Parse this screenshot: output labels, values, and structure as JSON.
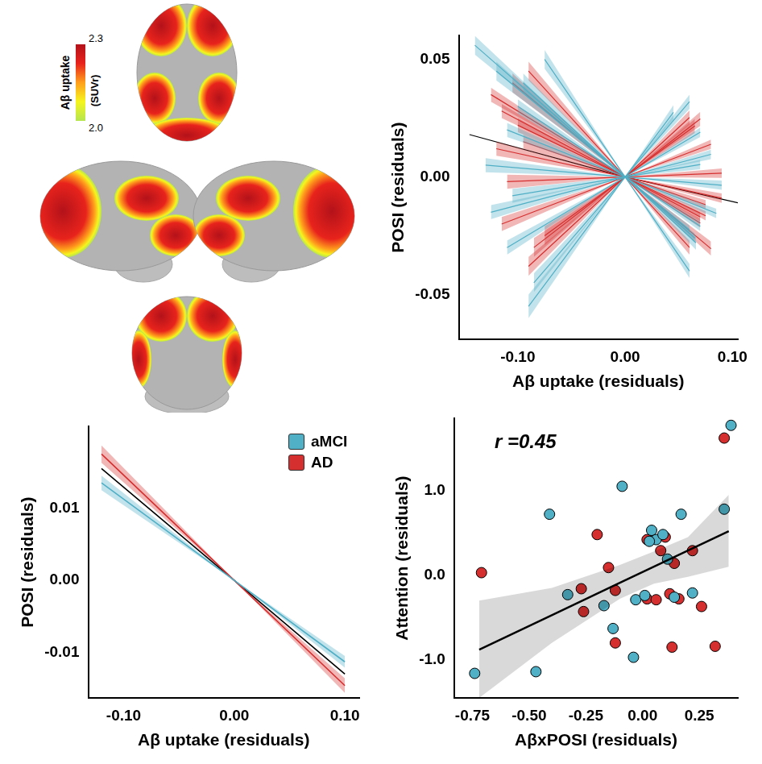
{
  "chart_data": [
    {
      "type": "line",
      "x_label": "Aβ uptake (residuals)",
      "y_label": "POSI (residuals)",
      "xlim": [
        -0.155,
        0.105
      ],
      "ylim": [
        -0.069,
        0.06
      ],
      "xticks": [
        {
          "value": -0.1,
          "label": "-0.10"
        },
        {
          "value": 0,
          "label": "0.00"
        },
        {
          "value": 0.1,
          "label": "0.10"
        }
      ],
      "yticks": [
        {
          "value": -0.05,
          "label": "-0.05"
        },
        {
          "value": 0,
          "label": "0.00"
        },
        {
          "value": 0.05,
          "label": "0.05"
        }
      ],
      "grid": false,
      "series": [
        {
          "name": "aMCI",
          "color": "#4fb0c6",
          "x": [
            -0.14,
            0,
            0.065
          ],
          "values": [
            0.056,
            0,
            -0.026
          ],
          "ci": [
            0.004,
            0,
            0.002
          ]
        },
        {
          "name": "aMCI",
          "color": "#4fb0c6",
          "x": [
            -0.12,
            0,
            0.06
          ],
          "values": [
            0.045,
            0,
            -0.0225
          ],
          "ci": [
            0.004,
            0,
            0.002
          ]
        },
        {
          "name": "aMCI",
          "color": "#4fb0c6",
          "x": [
            -0.1,
            0,
            0.07
          ],
          "values": [
            0.03,
            0,
            -0.021
          ],
          "ci": [
            0.003,
            0,
            0.002
          ]
        },
        {
          "name": "aMCI",
          "color": "#4fb0c6",
          "x": [
            -0.13,
            0,
            0.09
          ],
          "values": [
            0.005,
            0,
            -0.0035
          ],
          "ci": [
            0.003,
            0,
            0.002
          ]
        },
        {
          "name": "aMCI",
          "color": "#4fb0c6",
          "x": [
            -0.125,
            0,
            0.08
          ],
          "values": [
            -0.015,
            0,
            0.0096
          ],
          "ci": [
            0.003,
            0,
            0.002
          ]
        },
        {
          "name": "aMCI",
          "color": "#4fb0c6",
          "x": [
            -0.09,
            0,
            0.045
          ],
          "values": [
            -0.055,
            0,
            0.0275
          ],
          "ci": [
            0.005,
            0,
            0.003
          ]
        },
        {
          "name": "aMCI",
          "color": "#4fb0c6",
          "x": [
            -0.085,
            0,
            0.06
          ],
          "values": [
            -0.045,
            0,
            0.032
          ],
          "ci": [
            0.004,
            0,
            0.003
          ]
        },
        {
          "name": "aMCI",
          "color": "#4fb0c6",
          "x": [
            -0.11,
            0,
            0.07
          ],
          "values": [
            -0.03,
            0,
            0.019
          ],
          "ci": [
            0.003,
            0,
            0.002
          ]
        },
        {
          "name": "aMCI",
          "color": "#4fb0c6",
          "x": [
            -0.095,
            0,
            0.066
          ],
          "values": [
            0.04,
            0,
            -0.028
          ],
          "ci": [
            0.004,
            0,
            0.003
          ]
        },
        {
          "name": "aMCI",
          "color": "#4fb0c6",
          "x": [
            -0.11,
            0,
            0.085
          ],
          "values": [
            0.02,
            0,
            -0.0155
          ],
          "ci": [
            0.003,
            0,
            0.002
          ]
        },
        {
          "name": "aMCI",
          "color": "#4fb0c6",
          "x": [
            -0.105,
            0,
            0.07
          ],
          "values": [
            -0.008,
            0,
            0.0053
          ],
          "ci": [
            0.003,
            0,
            0.002
          ]
        },
        {
          "name": "aMCI",
          "color": "#4fb0c6",
          "x": [
            -0.075,
            0,
            0.06
          ],
          "values": [
            0.05,
            0,
            -0.04
          ],
          "ci": [
            0.004,
            0,
            0.003
          ]
        },
        {
          "name": "AD",
          "color": "#d62f2f",
          "x": [
            -0.125,
            0,
            0.07
          ],
          "values": [
            0.035,
            0,
            -0.0196
          ],
          "ci": [
            0.003,
            0,
            0.002
          ]
        },
        {
          "name": "AD",
          "color": "#d62f2f",
          "x": [
            -0.115,
            0,
            0.07
          ],
          "values": [
            0.028,
            0,
            -0.017
          ],
          "ci": [
            0.003,
            0,
            0.002
          ]
        },
        {
          "name": "AD",
          "color": "#d62f2f",
          "x": [
            -0.09,
            0,
            0.06
          ],
          "values": [
            0.045,
            0,
            -0.03
          ],
          "ci": [
            0.004,
            0,
            0.003
          ]
        },
        {
          "name": "AD",
          "color": "#d62f2f",
          "x": [
            -0.1,
            0,
            0.075
          ],
          "values": [
            0.022,
            0,
            -0.0165
          ],
          "ci": [
            0.003,
            0,
            0.002
          ]
        },
        {
          "name": "AD",
          "color": "#d62f2f",
          "x": [
            -0.12,
            0,
            0.09
          ],
          "values": [
            0.012,
            0,
            -0.009
          ],
          "ci": [
            0.003,
            0,
            0.002
          ]
        },
        {
          "name": "AD",
          "color": "#d62f2f",
          "x": [
            -0.085,
            0,
            0.07
          ],
          "values": [
            -0.03,
            0,
            0.0247
          ],
          "ci": [
            0.004,
            0,
            0.003
          ]
        },
        {
          "name": "AD",
          "color": "#d62f2f",
          "x": [
            -0.09,
            0,
            0.06
          ],
          "values": [
            -0.038,
            0,
            0.0253
          ],
          "ci": [
            0.004,
            0,
            0.003
          ]
        },
        {
          "name": "AD",
          "color": "#d62f2f",
          "x": [
            -0.115,
            0,
            0.08
          ],
          "values": [
            -0.02,
            0,
            0.0139
          ],
          "ci": [
            0.003,
            0,
            0.002
          ]
        },
        {
          "name": "AD",
          "color": "#d62f2f",
          "x": [
            -0.075,
            0,
            0.065
          ],
          "values": [
            -0.025,
            0,
            0.0217
          ],
          "ci": [
            0.004,
            0,
            0.003
          ]
        },
        {
          "name": "AD",
          "color": "#d62f2f",
          "x": [
            -0.105,
            0,
            0.08
          ],
          "values": [
            0.04,
            0,
            -0.0305
          ],
          "ci": [
            0.004,
            0,
            0.003
          ]
        },
        {
          "name": "AD",
          "color": "#d62f2f",
          "x": [
            -0.095,
            0,
            0.075
          ],
          "values": [
            0.015,
            0,
            -0.0118
          ],
          "ci": [
            0.003,
            0,
            0.002
          ]
        },
        {
          "name": "AD",
          "color": "#d62f2f",
          "x": [
            -0.11,
            0,
            0.09
          ],
          "values": [
            -0.002,
            0,
            0.0016
          ],
          "ci": [
            0.003,
            0,
            0.002
          ]
        },
        {
          "color": "#000000",
          "x": [
            -0.145,
            0,
            0.105
          ],
          "values": [
            0.018,
            0,
            -0.011
          ]
        }
      ]
    },
    {
      "type": "line",
      "x_label": "Aβ uptake (residuals)",
      "y_label": "POSI (residuals)",
      "xlim": [
        -0.132,
        0.113
      ],
      "ylim": [
        -0.0163,
        0.0213
      ],
      "xticks": [
        {
          "value": -0.1,
          "label": "-0.10"
        },
        {
          "value": 0,
          "label": "0.00"
        },
        {
          "value": 0.1,
          "label": "0.10"
        }
      ],
      "yticks": [
        {
          "value": -0.01,
          "label": "-0.01"
        },
        {
          "value": 0,
          "label": "0.00"
        },
        {
          "value": 0.01,
          "label": "0.01"
        }
      ],
      "grid": false,
      "legend": "top-right",
      "series": [
        {
          "name": "aMCI",
          "color": "#4fb0c6",
          "x": [
            -0.12,
            0,
            0.1
          ],
          "values": [
            0.0135,
            0,
            -0.0113
          ],
          "ci": [
            0.001,
            0,
            0.0008
          ]
        },
        {
          "name": "AD",
          "color": "#d62f2f",
          "x": [
            -0.12,
            0,
            0.1
          ],
          "values": [
            0.0175,
            0,
            -0.0146
          ],
          "ci": [
            0.0012,
            0,
            0.001
          ]
        },
        {
          "color": "#000000",
          "x": [
            -0.12,
            0,
            0.1
          ],
          "values": [
            0.0155,
            0,
            -0.013
          ]
        }
      ]
    },
    {
      "type": "scatter",
      "x_label": "AβxPOSI (residuals)",
      "y_label": "Attention (residuals)",
      "xlim": [
        -0.83,
        0.42
      ],
      "ylim": [
        -1.45,
        1.85
      ],
      "xticks": [
        {
          "value": -0.75,
          "label": "-0.75"
        },
        {
          "value": -0.5,
          "label": "-0.50"
        },
        {
          "value": -0.25,
          "label": "-0.25"
        },
        {
          "value": 0,
          "label": "0.00"
        },
        {
          "value": 0.25,
          "label": "0.25"
        }
      ],
      "yticks": [
        {
          "value": -1,
          "label": "-1.0"
        },
        {
          "value": 0,
          "label": "0.0"
        },
        {
          "value": 1,
          "label": "1.0"
        }
      ],
      "grid": false,
      "annotations": [
        {
          "text": "r =0.45"
        }
      ],
      "series": [
        {
          "type": "line",
          "color": "#000000",
          "x": [
            -0.72,
            -0.4,
            -0.1,
            0.05,
            0.2,
            0.38
          ],
          "values": [
            -0.88,
            -0.473,
            -0.089,
            0.1,
            0.291,
            0.52
          ],
          "lower": [
            -1.45,
            -0.8,
            -0.28,
            -0.1,
            -0.02,
            0.1
          ],
          "upper": [
            -0.3,
            -0.15,
            0.12,
            0.28,
            0.45,
            0.95
          ]
        },
        {
          "name": "aMCI",
          "color": "#4fb0c6",
          "marker": "circle",
          "x": [
            -0.74,
            -0.47,
            -0.41,
            -0.33,
            -0.17,
            -0.13,
            -0.09,
            -0.03,
            -0.04,
            0.01,
            0.04,
            0.06,
            0.09,
            0.11,
            0.14,
            0.17,
            0.22,
            0.36,
            0.39,
            0.03
          ],
          "values": [
            -1.16,
            -1.14,
            0.72,
            -0.23,
            -0.36,
            -0.63,
            1.05,
            -0.29,
            -0.97,
            -0.24,
            0.53,
            0.42,
            0.48,
            0.19,
            -0.26,
            0.72,
            -0.21,
            0.78,
            1.77,
            0.4
          ]
        },
        {
          "name": "AD",
          "color": "#d62f2f",
          "marker": "circle",
          "x": [
            -0.71,
            -0.27,
            -0.26,
            -0.2,
            -0.15,
            -0.12,
            0.02,
            0.02,
            0.06,
            0.08,
            0.1,
            0.12,
            0.13,
            0.14,
            0.16,
            0.22,
            0.26,
            0.32,
            0.36,
            -0.12
          ],
          "values": [
            0.03,
            -0.16,
            -0.43,
            0.48,
            0.09,
            -0.8,
            0.42,
            -0.28,
            -0.29,
            0.29,
            0.45,
            -0.22,
            -0.85,
            0.14,
            -0.28,
            0.29,
            -0.37,
            -0.84,
            1.62,
            -0.18
          ]
        }
      ]
    }
  ],
  "brain_map": {
    "colorbar": {
      "title": "Aβ uptake",
      "unit": "(SUVr)",
      "range": [
        2.0,
        2.3
      ],
      "ticks": [
        {
          "value": 2.0,
          "label": "2.0"
        },
        {
          "value": 2.3,
          "label": "2.3"
        }
      ],
      "colors": [
        "#b5e550",
        "#f5f51e",
        "#ff9f1c",
        "#e8231c",
        "#b3121a"
      ]
    }
  }
}
